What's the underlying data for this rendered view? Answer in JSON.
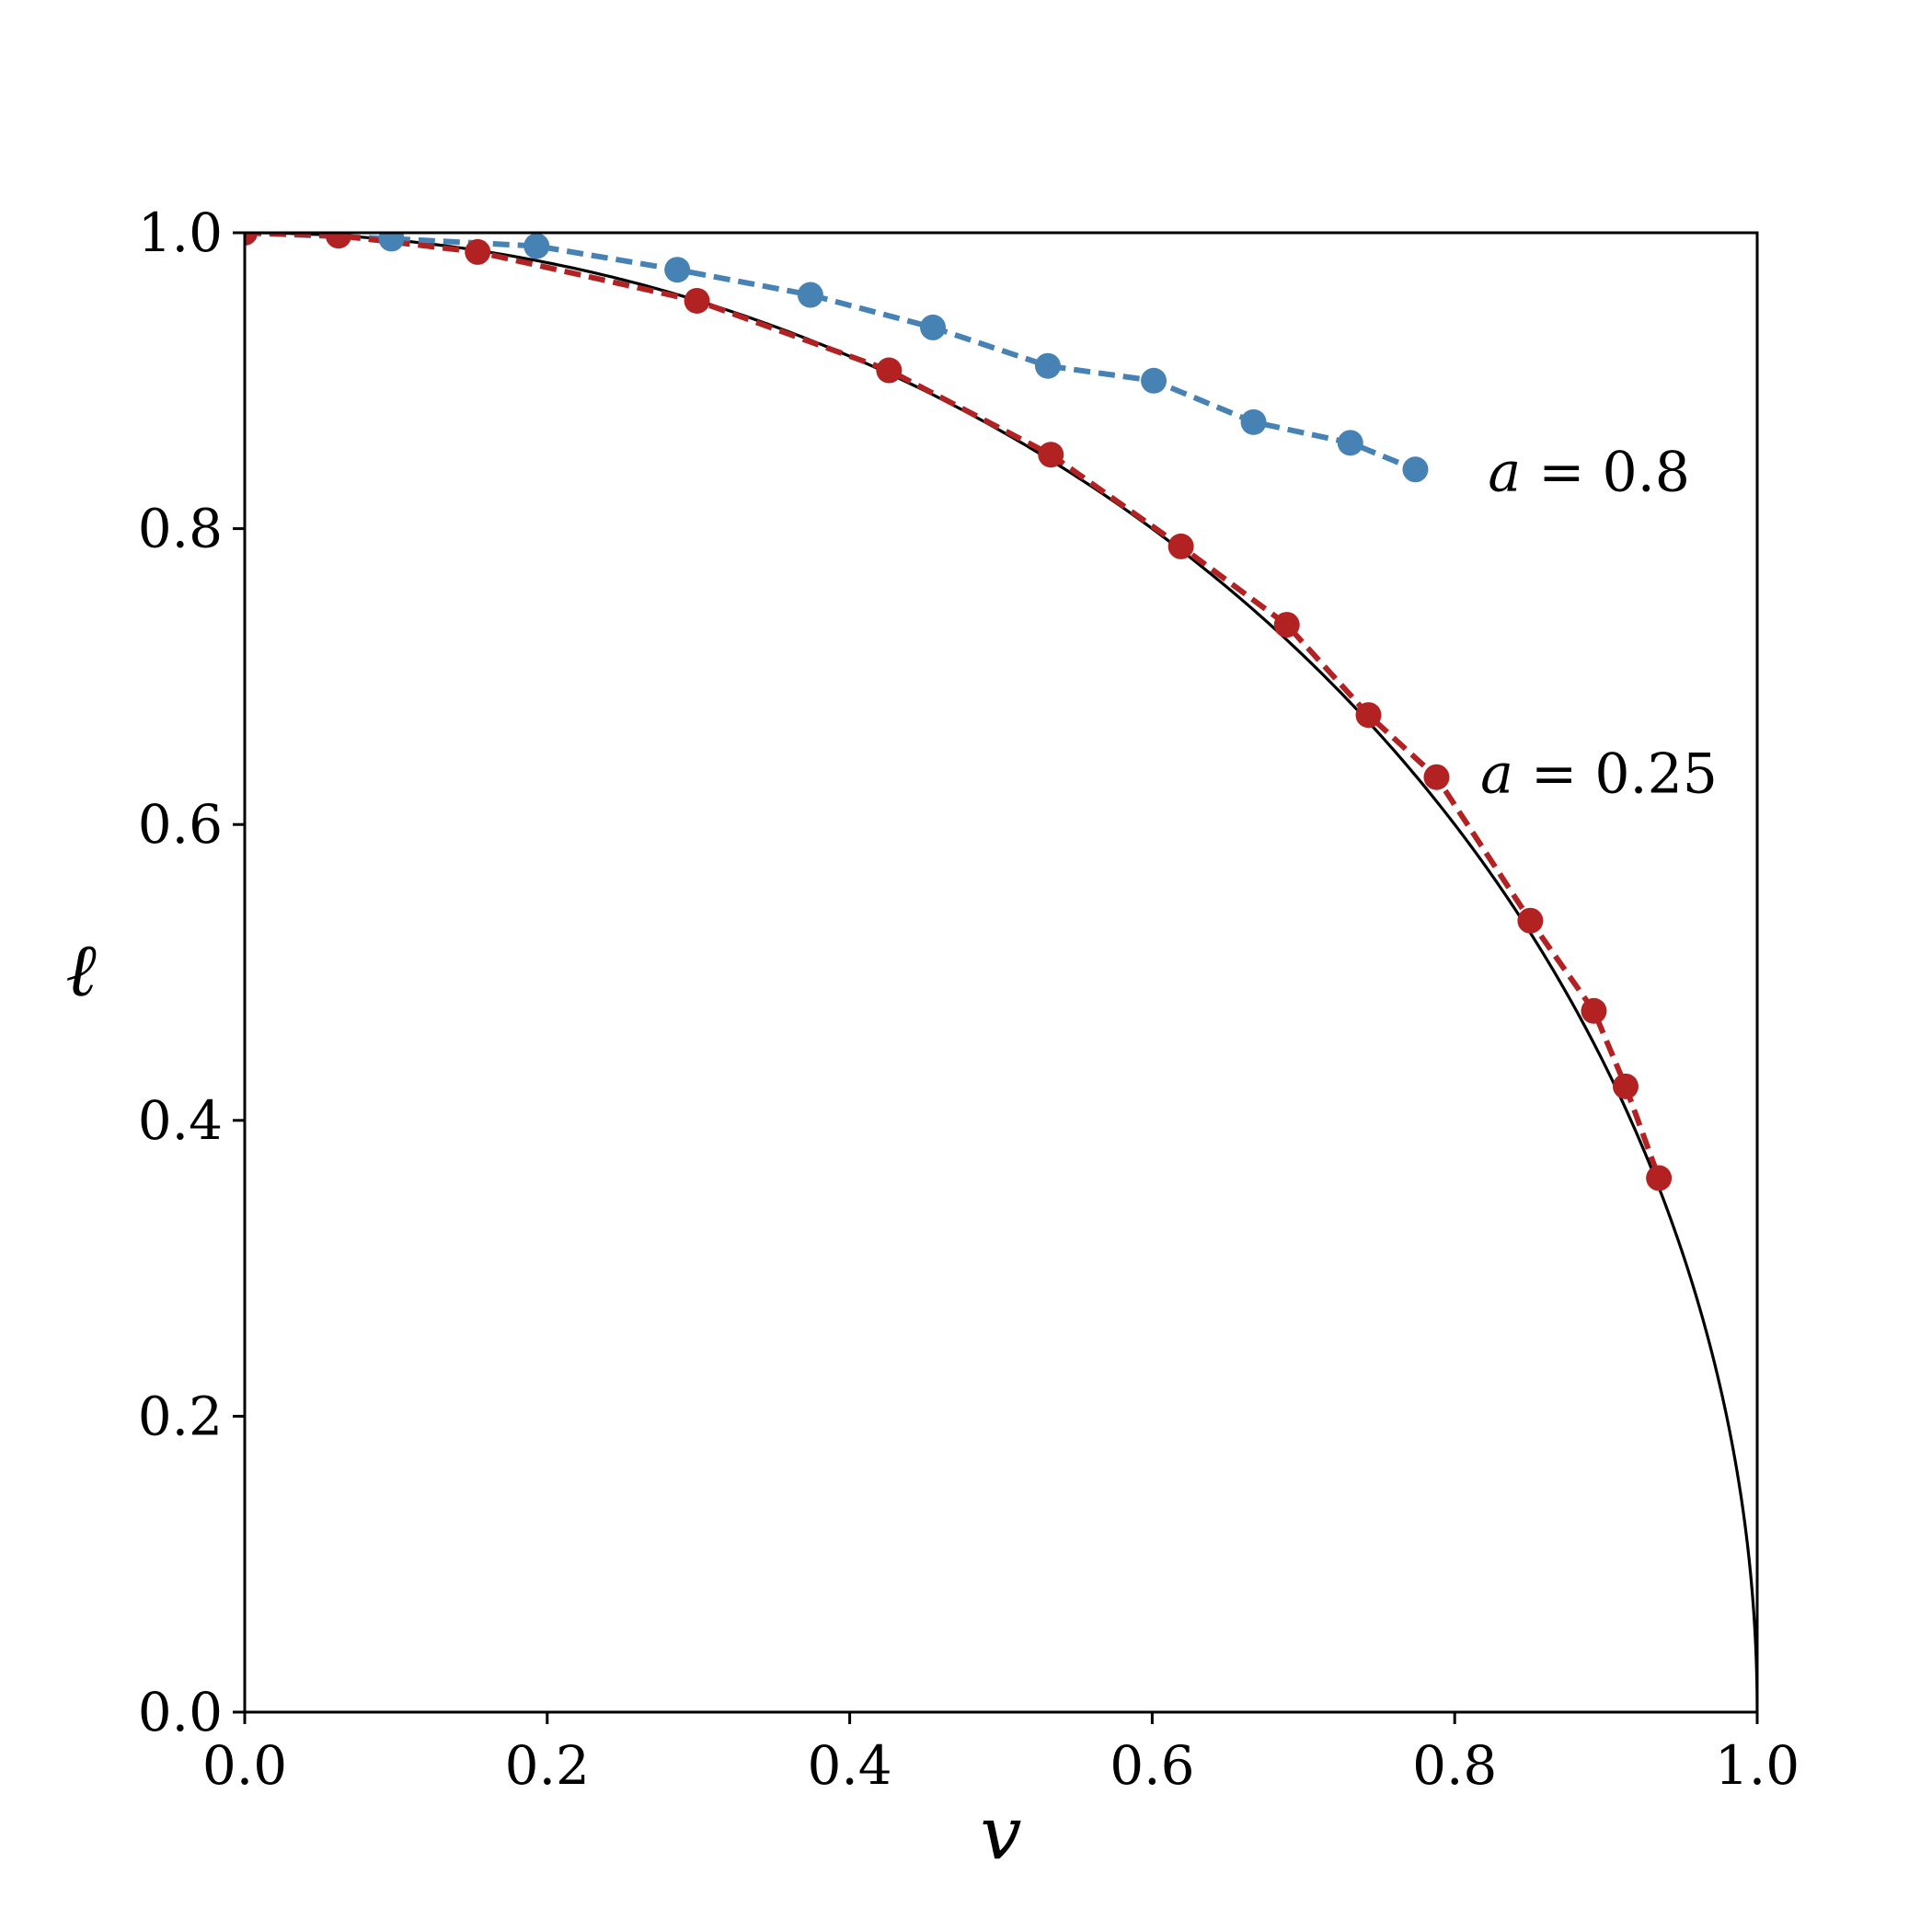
{
  "chart_data": {
    "type": "line",
    "xlabel": "v",
    "ylabel": "ℓ",
    "xlim": [
      0.0,
      1.0
    ],
    "ylim": [
      0.0,
      1.0
    ],
    "xticks": [
      "0.0",
      "0.2",
      "0.4",
      "0.6",
      "0.8",
      "1.0"
    ],
    "yticks": [
      "0.0",
      "0.2",
      "0.4",
      "0.6",
      "0.8",
      "1.0"
    ],
    "grid": false,
    "reference_curve": {
      "color": "#000000",
      "style": "solid",
      "function": "sqrt(1 - v^2)"
    },
    "series": [
      {
        "label_var": "a",
        "label_eq": " = 0.8",
        "color": "#4682b4",
        "style": "dashed-markers",
        "x": [
          0.0,
          0.097,
          0.193,
          0.286,
          0.374,
          0.455,
          0.531,
          0.601,
          0.667,
          0.731,
          0.774
        ],
        "y": [
          1.0,
          0.996,
          0.991,
          0.975,
          0.958,
          0.936,
          0.91,
          0.9,
          0.872,
          0.858,
          0.84
        ]
      },
      {
        "label_var": "a",
        "label_eq": " = 0.25",
        "color": "#b22222",
        "style": "dashed-markers",
        "x": [
          0.0,
          0.062,
          0.154,
          0.299,
          0.426,
          0.533,
          0.619,
          0.689,
          0.743,
          0.788,
          0.85,
          0.892,
          0.913,
          0.935
        ],
        "y": [
          1.0,
          0.998,
          0.987,
          0.954,
          0.907,
          0.85,
          0.788,
          0.735,
          0.674,
          0.632,
          0.535,
          0.474,
          0.423,
          0.361
        ]
      }
    ],
    "annotations": [
      {
        "var": "a",
        "eq": " = 0.8",
        "x": 0.822,
        "y": 0.838
      },
      {
        "var": "a",
        "eq": " = 0.25",
        "x": 0.817,
        "y": 0.634
      }
    ]
  }
}
